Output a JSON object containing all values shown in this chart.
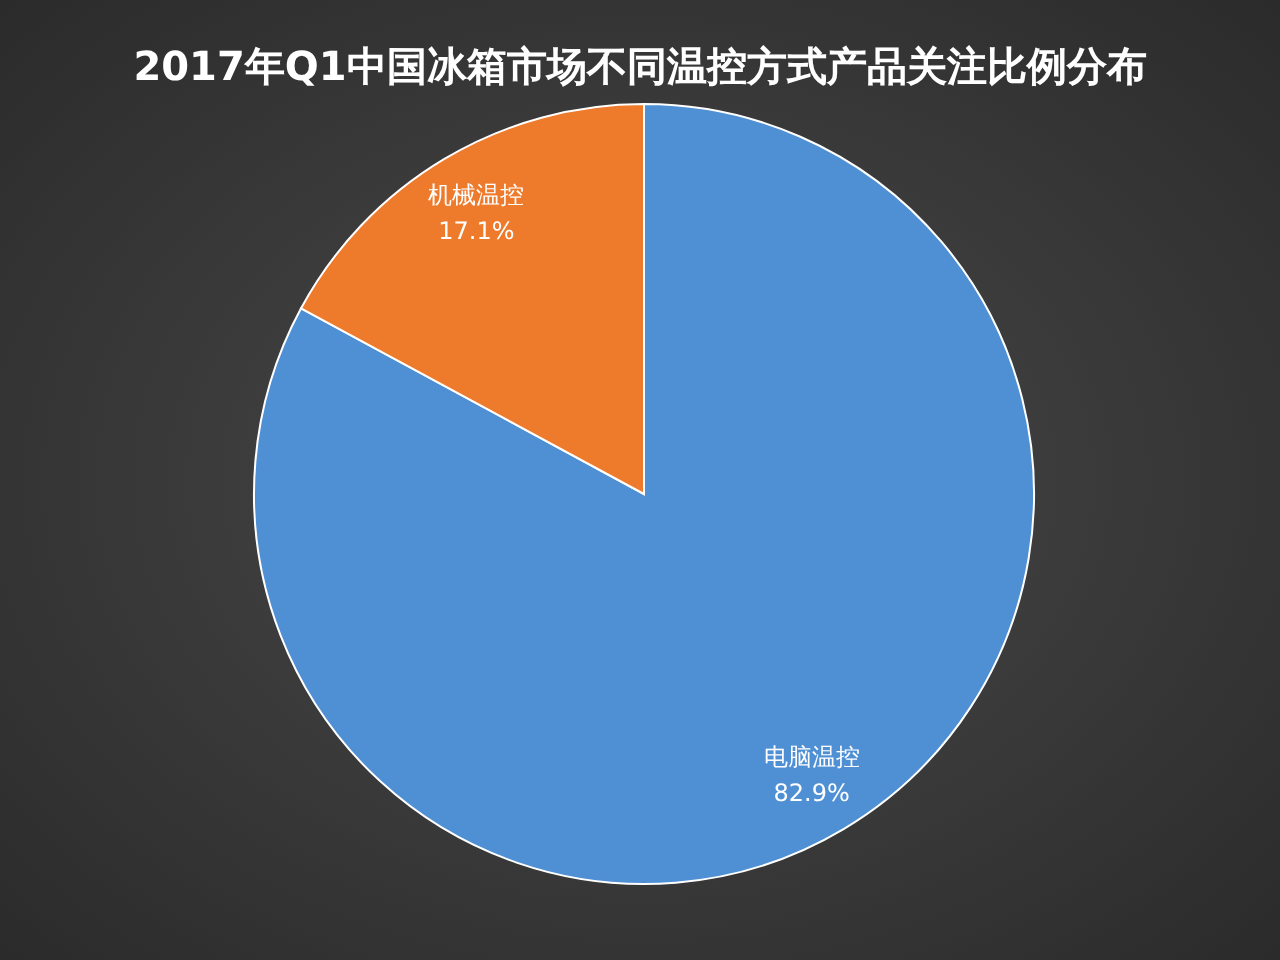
{
  "chart_data": {
    "type": "pie",
    "title": "2017年Q1中国冰箱市场不同温控方式产品关注比例分布",
    "categories": [
      "电脑温控",
      "机械温控"
    ],
    "values": [
      82.9,
      17.1
    ],
    "colors": [
      "#4f90d4",
      "#ee7a2c"
    ],
    "value_labels": [
      "82.9%",
      "17.1%"
    ]
  }
}
